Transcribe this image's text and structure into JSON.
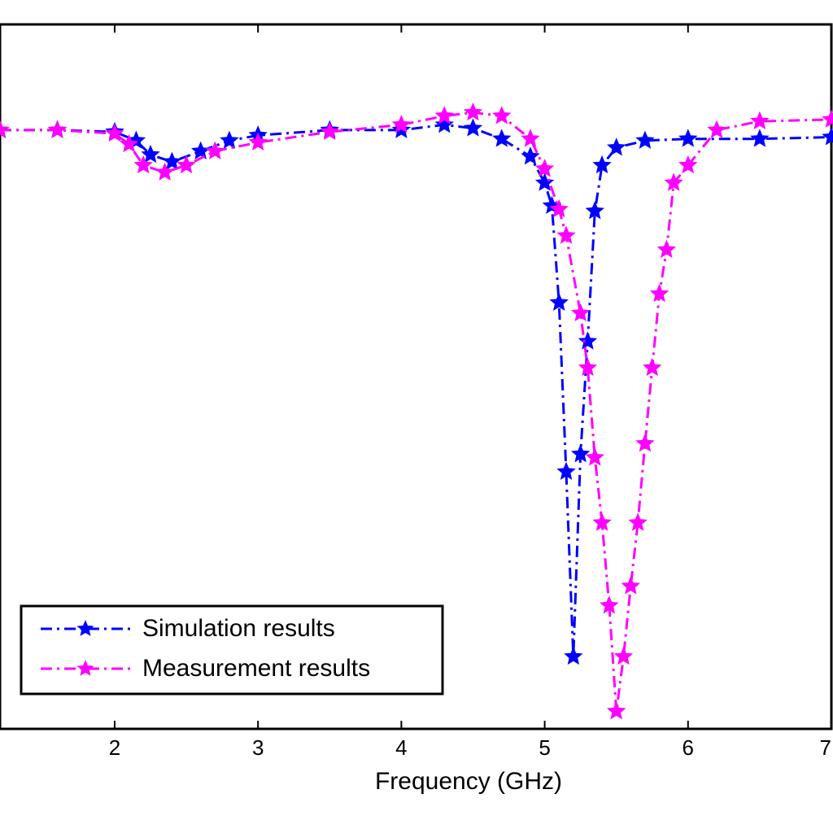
{
  "chart_data": {
    "type": "line",
    "title": "",
    "xlabel": "Frequency (GHz)",
    "ylabel": "",
    "xlim": [
      1.2,
      7.0
    ],
    "ylim": [
      -35,
      5
    ],
    "xticks": [
      2,
      3,
      4,
      5,
      6,
      7
    ],
    "xtick_labels": [
      "2",
      "3",
      "4",
      "5",
      "6",
      "7"
    ],
    "grid": false,
    "legend_position": "bottom-left",
    "series": [
      {
        "name": "Simulation results",
        "color": "#0000ff",
        "marker": "star",
        "line_style": "dash-dot",
        "x": [
          1.2,
          1.6,
          2.0,
          2.15,
          2.25,
          2.4,
          2.6,
          2.8,
          3.0,
          3.5,
          4.0,
          4.3,
          4.5,
          4.7,
          4.9,
          5.0,
          5.05,
          5.1,
          5.15,
          5.2,
          5.25,
          5.3,
          5.35,
          5.4,
          5.5,
          5.7,
          6.0,
          6.5,
          7.0
        ],
        "y": [
          -1.0,
          -1.0,
          -1.1,
          -1.6,
          -2.4,
          -2.8,
          -2.2,
          -1.6,
          -1.3,
          -1.0,
          -1.0,
          -0.7,
          -0.9,
          -1.5,
          -2.5,
          -4.0,
          -5.3,
          -10.8,
          -20.4,
          -30.9,
          -19.4,
          -13.0,
          -5.6,
          -3.0,
          -2.0,
          -1.6,
          -1.5,
          -1.5,
          -1.4
        ]
      },
      {
        "name": "Measurement results",
        "color": "#ff00ff",
        "marker": "star",
        "line_style": "dash-dot",
        "x": [
          1.2,
          1.6,
          2.0,
          2.1,
          2.2,
          2.35,
          2.5,
          2.7,
          3.0,
          3.5,
          4.0,
          4.3,
          4.5,
          4.7,
          4.9,
          5.0,
          5.1,
          5.15,
          5.25,
          5.3,
          5.35,
          5.4,
          5.45,
          5.5,
          5.55,
          5.6,
          5.65,
          5.7,
          5.75,
          5.8,
          5.85,
          5.9,
          6.0,
          6.2,
          6.5,
          7.0
        ],
        "y": [
          -1.0,
          -1.0,
          -1.2,
          -1.8,
          -3.0,
          -3.4,
          -3.0,
          -2.2,
          -1.7,
          -1.1,
          -0.7,
          -0.2,
          0.0,
          -0.2,
          -1.5,
          -3.2,
          -5.5,
          -7.0,
          -11.4,
          -14.5,
          -19.6,
          -23.3,
          -28.0,
          -34.0,
          -30.9,
          -26.9,
          -23.3,
          -18.8,
          -14.5,
          -10.3,
          -7.8,
          -4.0,
          -3.0,
          -1.0,
          -0.5,
          -0.4
        ]
      }
    ]
  }
}
